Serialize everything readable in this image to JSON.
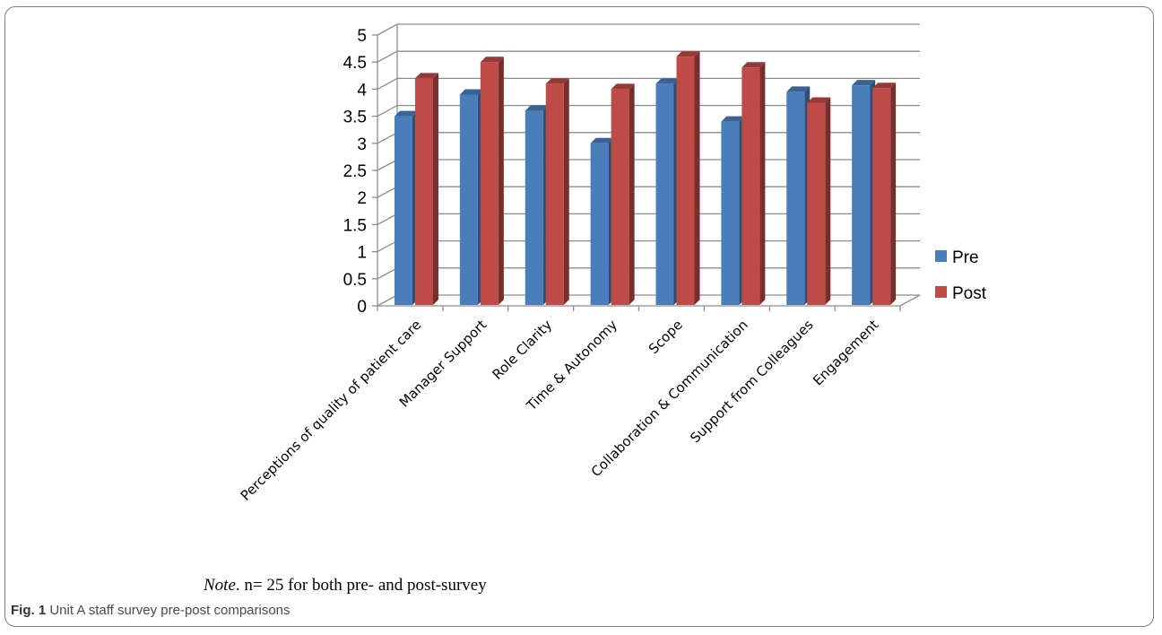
{
  "chart_data": {
    "type": "bar",
    "categories": [
      "Perceptions of quality of patient care",
      "Manager Support",
      "Role Clarity",
      "Time & Autonomy",
      "Scope",
      "Collaboration & Communication",
      "Support from Colleagues",
      "Engagement"
    ],
    "series": [
      {
        "name": "Pre",
        "values": [
          3.5,
          3.9,
          3.6,
          3.0,
          4.1,
          3.4,
          3.95,
          4.07
        ],
        "color": "#4a7ebb"
      },
      {
        "name": "Post",
        "values": [
          4.2,
          4.5,
          4.1,
          4.0,
          4.6,
          4.4,
          3.75,
          4.02
        ],
        "color": "#be4b48"
      }
    ],
    "yticks": [
      "0",
      "0.5",
      "1",
      "1.5",
      "2",
      "2.5",
      "3",
      "3.5",
      "4",
      "4.5",
      "5"
    ],
    "ylim": [
      0,
      5
    ],
    "grid": true,
    "legend_position": "right",
    "style": "3d-clustered-column"
  },
  "note": {
    "label": "Note",
    "text": ". n= 25 for both pre- and post-survey"
  },
  "caption": {
    "label": "Fig. 1",
    "text": " Unit A staff survey pre-post comparisons"
  }
}
